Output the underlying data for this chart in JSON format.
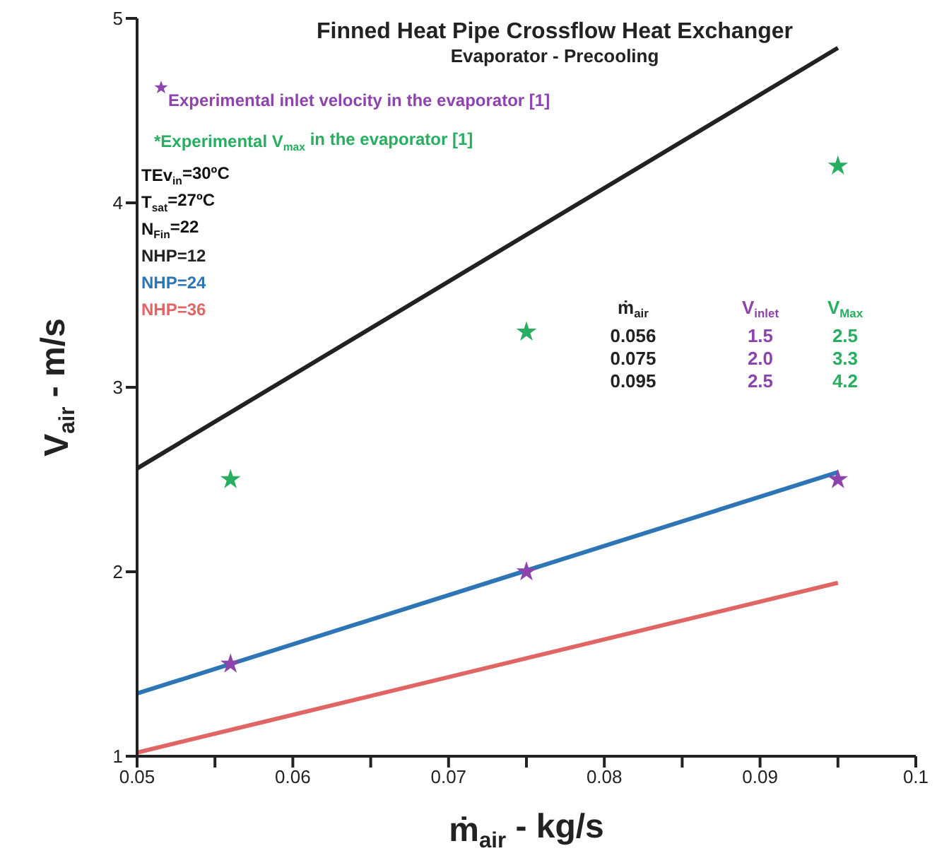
{
  "chart_data": {
    "type": "line",
    "title": "Finned Heat Pipe Crossflow Heat Exchanger",
    "subtitle": "Evaporator - Precooling",
    "xlabel": "ṁ$_{air}$ - kg/s",
    "ylabel": "V$_{air}$ - m/s",
    "xlim": [
      0.05,
      0.1
    ],
    "xticks": [
      0.05,
      {
        "value": 0.055,
        "label": null
      },
      0.06,
      {
        "value": 0.065,
        "label": null
      },
      0.07,
      {
        "value": 0.075,
        "label": null
      },
      0.08,
      {
        "value": 0.085,
        "label": null
      },
      0.09,
      {
        "value": 0.095,
        "label": null
      },
      0.1
    ],
    "ylim": [
      1,
      5
    ],
    "yticks": [
      1,
      2,
      3,
      4,
      5
    ],
    "grid": false,
    "legend": "top left",
    "series": [
      {
        "name": "NHP=12",
        "color": "#222222",
        "marker": "none",
        "x": [
          0.05,
          0.095
        ],
        "values": [
          2.56,
          4.84
        ]
      },
      {
        "name": "NHP=24",
        "color": "#2e75b6",
        "marker": "none",
        "x": [
          0.05,
          0.095
        ],
        "values": [
          1.34,
          2.54
        ]
      },
      {
        "name": "NHP=36",
        "color": "#e06666",
        "marker": "none",
        "x": [
          0.05,
          0.095
        ],
        "values": [
          1.02,
          1.94
        ]
      },
      {
        "name": "Experimental inlet velocity in the evaporator [1]",
        "type": "scatter",
        "color": "#8e44ad",
        "marker": "star",
        "x": [
          0.056,
          0.075,
          0.095
        ],
        "values": [
          1.5,
          2.0,
          2.5
        ]
      },
      {
        "name": "*Experimental V$_{max}$ in the evaporator [1]",
        "type": "scatter",
        "color": "#27ae60",
        "marker": "star",
        "x": [
          0.056,
          0.075,
          0.095
        ],
        "values": [
          2.5,
          3.3,
          4.2
        ]
      }
    ],
    "annotations": [
      "TEv$_{in}$=30ºC",
      "T$_{sat}$=27ºC",
      "N$_{Fin}$=22",
      "ṁ$_{air}$",
      "V$_{inlet}$",
      "V$_{Max}$",
      "0.056",
      "1.5",
      "2.5",
      "0.075",
      "2.0",
      "3.3",
      "0.095",
      "2.5",
      "4.2"
    ]
  }
}
